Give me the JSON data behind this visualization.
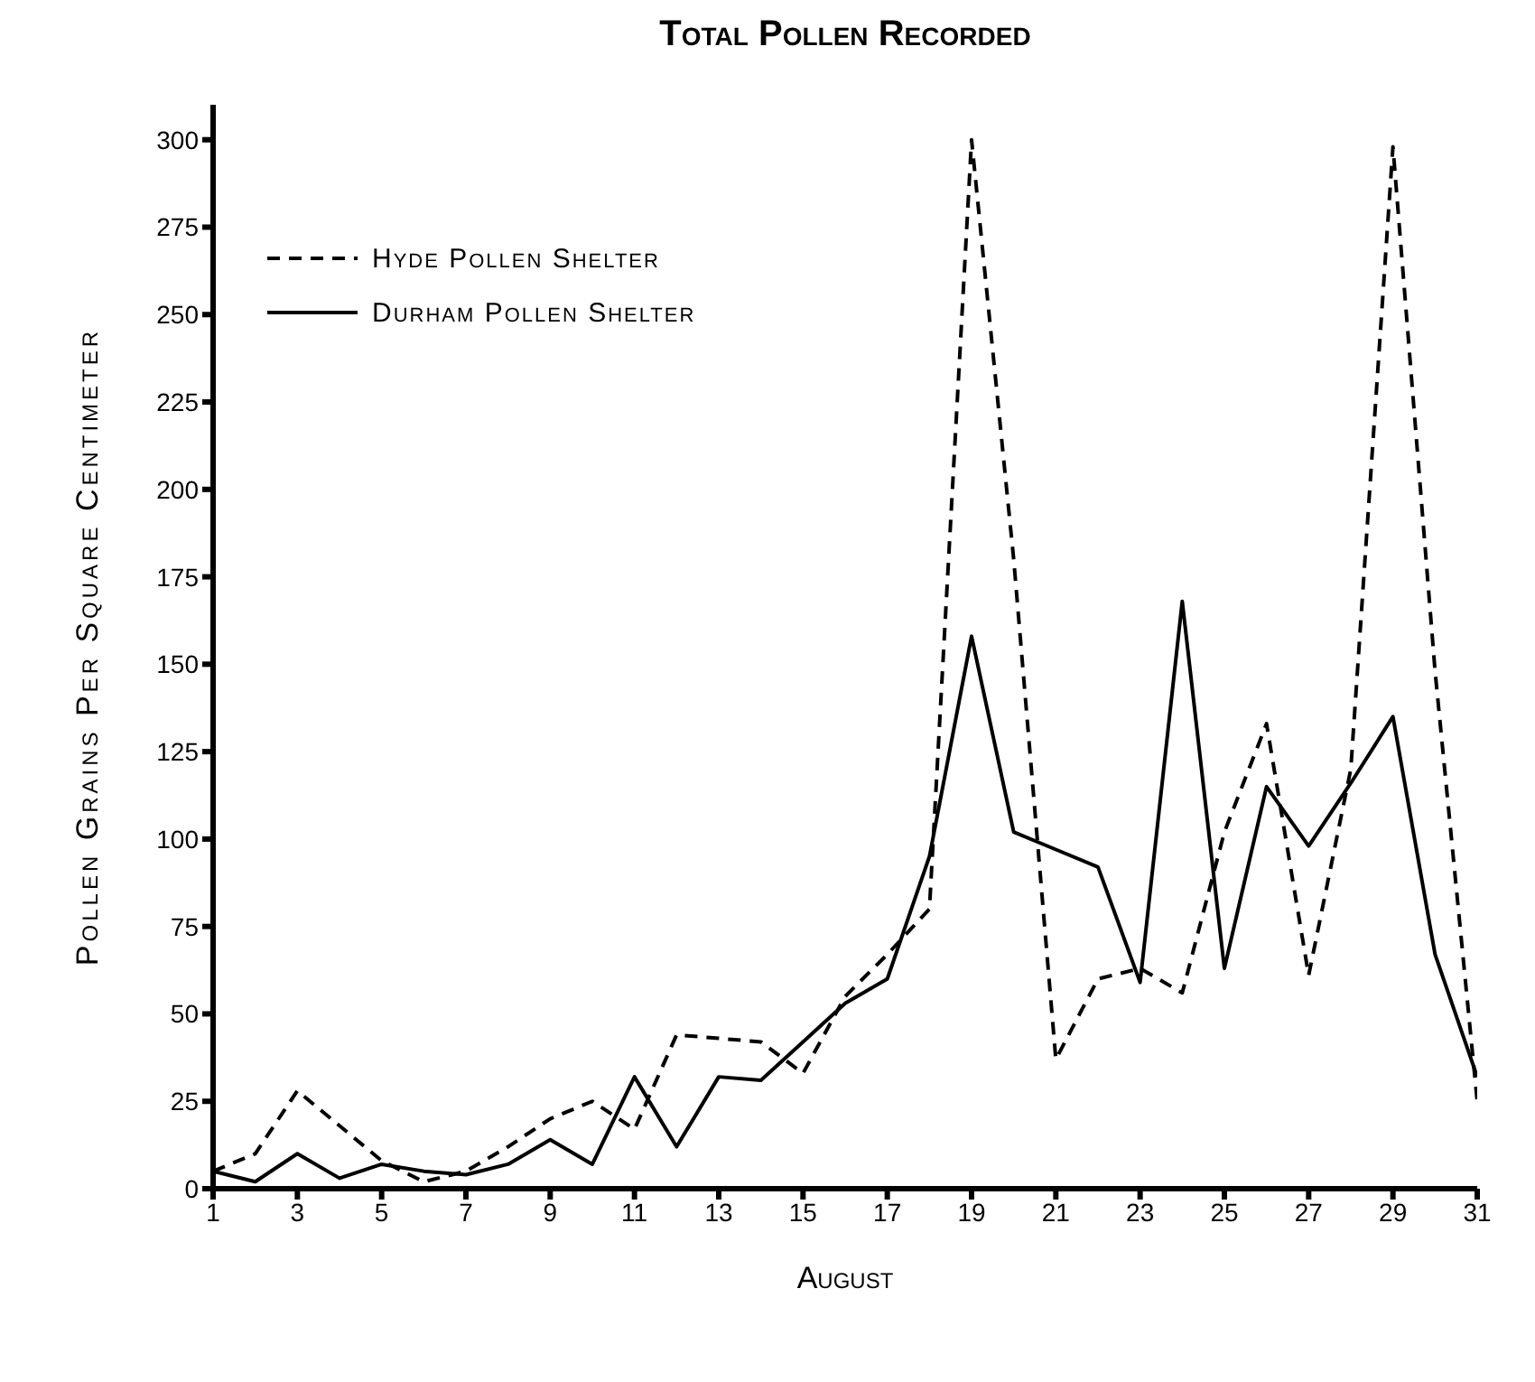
{
  "chart_data": {
    "type": "line",
    "title": "Total Pollen Recorded",
    "xlabel": "August",
    "ylabel": "Pollen Grains Per Square Centimeter",
    "x": [
      1,
      2,
      3,
      4,
      5,
      6,
      7,
      8,
      9,
      10,
      11,
      12,
      13,
      14,
      15,
      16,
      17,
      18,
      19,
      20,
      21,
      22,
      23,
      24,
      25,
      26,
      27,
      28,
      29,
      30,
      31
    ],
    "series": [
      {
        "name": "Hyde Pollen Shelter",
        "color": "#000000",
        "line_style": "dashed",
        "values": [
          5,
          10,
          28,
          18,
          8,
          2,
          5,
          12,
          20,
          25,
          17,
          44,
          43,
          42,
          33,
          55,
          67,
          80,
          300,
          180,
          37,
          60,
          63,
          56,
          102,
          133,
          61,
          120,
          298,
          148,
          25
        ]
      },
      {
        "name": "Durham Pollen Shelter",
        "color": "#000000",
        "line_style": "solid",
        "values": [
          5,
          2,
          10,
          3,
          7,
          5,
          4,
          7,
          14,
          7,
          32,
          12,
          32,
          31,
          42,
          53,
          60,
          95,
          158,
          102,
          97,
          92,
          59,
          168,
          63,
          115,
          98,
          116,
          135,
          67,
          32
        ]
      }
    ],
    "xlim": [
      1,
      31
    ],
    "xticks": [
      1,
      3,
      5,
      7,
      9,
      11,
      13,
      15,
      17,
      19,
      21,
      23,
      25,
      27,
      29,
      31
    ],
    "ylim": [
      0,
      310
    ],
    "yticks": [
      0,
      25,
      50,
      75,
      100,
      125,
      150,
      175,
      200,
      225,
      250,
      275,
      300
    ],
    "grid": false,
    "legend": "top left",
    "marker": "none"
  }
}
